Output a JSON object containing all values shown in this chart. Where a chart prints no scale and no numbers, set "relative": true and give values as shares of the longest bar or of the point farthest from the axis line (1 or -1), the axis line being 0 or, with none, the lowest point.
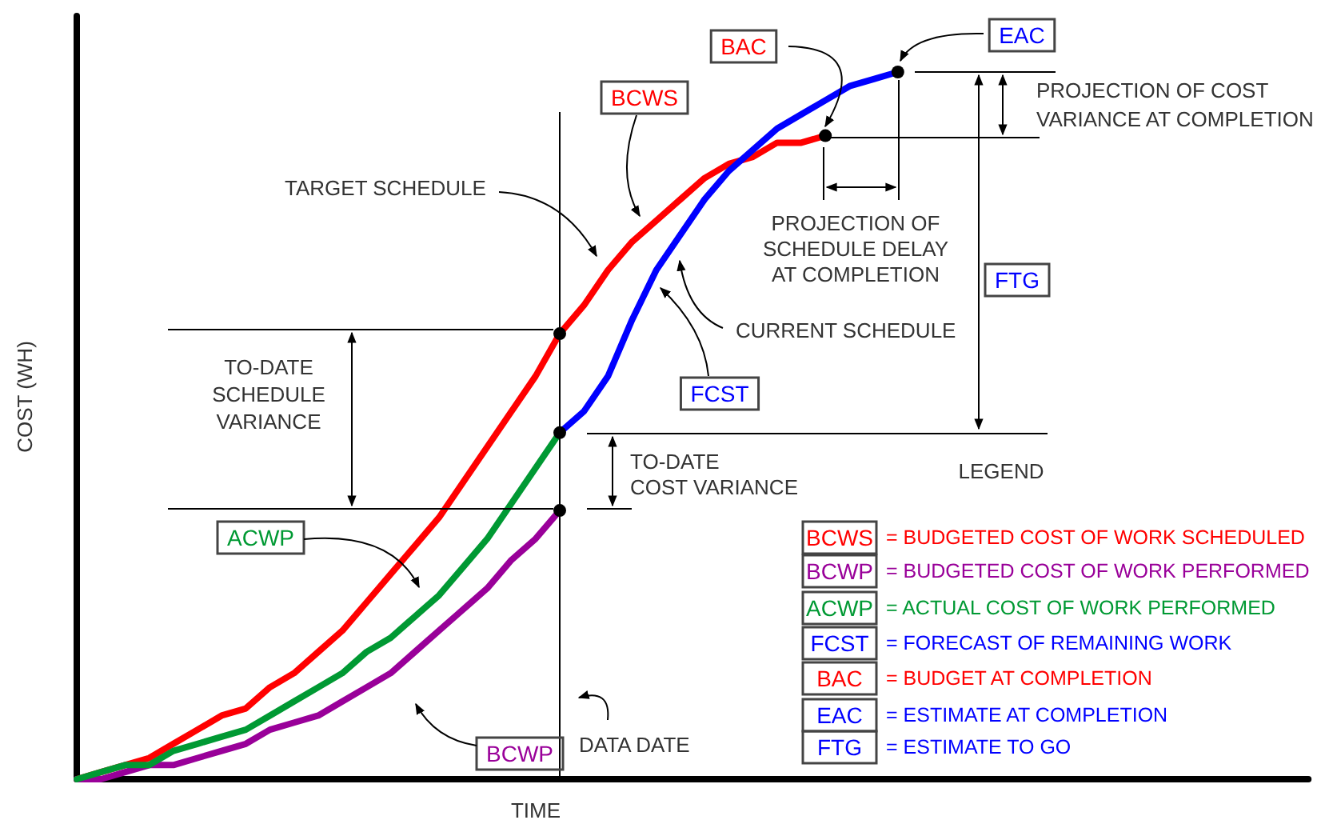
{
  "chart_data": {
    "type": "line",
    "relative": true,
    "xlabel": "TIME",
    "ylabel": "COST (WH)",
    "marker": "none",
    "line_style": "solid",
    "grid": false,
    "legend": false,
    "categories": [
      null,
      null,
      null,
      null,
      null,
      null,
      null,
      null,
      null,
      null,
      null,
      null,
      null,
      null,
      null,
      null,
      null,
      null,
      null,
      null,
      null,
      null,
      null,
      null,
      null,
      null,
      null,
      null,
      null,
      null,
      null,
      null,
      null,
      null,
      null,
      null,
      null,
      null,
      null,
      null,
      null,
      null,
      null,
      null,
      null,
      null,
      null,
      null,
      null,
      null,
      null,
      null
    ],
    "series": [
      {
        "name": "BCWS",
        "color": "#ff0000",
        "values": [
          0,
          0.01,
          0.02,
          0.03,
          0.05,
          0.07,
          0.09,
          0.1,
          0.13,
          0.15,
          0.18,
          0.21,
          0.25,
          0.29,
          0.33,
          0.37,
          0.42,
          0.47,
          0.52,
          0.57,
          0.63,
          0.67,
          0.72,
          0.76,
          0.79,
          0.82,
          0.85,
          0.87,
          0.88,
          0.9,
          0.9,
          0.91,
          null,
          null,
          null,
          null,
          null,
          null,
          null,
          null,
          null,
          null,
          null,
          null,
          null,
          null,
          null,
          null,
          null,
          null,
          null,
          null
        ]
      },
      {
        "name": "BCWP",
        "color": "#990099",
        "values": [
          0,
          0,
          0.01,
          0.02,
          0.02,
          0.03,
          0.04,
          0.05,
          0.07,
          0.08,
          0.09,
          0.11,
          0.13,
          0.15,
          0.18,
          0.21,
          0.24,
          0.27,
          0.31,
          0.34,
          0.38,
          null,
          null,
          null,
          null,
          null,
          null,
          null,
          null,
          null,
          null,
          null,
          null,
          null,
          null,
          null,
          null,
          null,
          null,
          null,
          null,
          null,
          null,
          null,
          null,
          null,
          null,
          null,
          null,
          null,
          null,
          null
        ]
      },
      {
        "name": "ACWP",
        "color": "#009933",
        "values": [
          0,
          0.01,
          0.02,
          0.02,
          0.04,
          0.05,
          0.06,
          0.07,
          0.09,
          0.11,
          0.13,
          0.15,
          0.18,
          0.2,
          0.23,
          0.26,
          0.3,
          0.34,
          0.39,
          0.44,
          0.49,
          null,
          null,
          null,
          null,
          null,
          null,
          null,
          null,
          null,
          null,
          null,
          null,
          null,
          null,
          null,
          null,
          null,
          null,
          null,
          null,
          null,
          null,
          null,
          null,
          null,
          null,
          null,
          null,
          null,
          null,
          null
        ]
      },
      {
        "name": "FCST",
        "color": "#0000ff",
        "values": [
          null,
          null,
          null,
          null,
          null,
          null,
          null,
          null,
          null,
          null,
          null,
          null,
          null,
          null,
          null,
          null,
          null,
          null,
          null,
          null,
          0.49,
          0.52,
          0.57,
          0.65,
          0.72,
          0.77,
          0.82,
          0.86,
          0.89,
          0.92,
          0.94,
          0.96,
          0.98,
          0.99,
          1,
          null,
          null,
          null,
          null,
          null,
          null,
          null,
          null,
          null,
          null,
          null,
          null,
          null,
          null,
          null,
          null,
          null
        ]
      }
    ],
    "ref_lines": [
      {
        "axis": "x",
        "label": "DATA DATE",
        "color": "#000000"
      }
    ],
    "annotations": [
      "TARGET SCHEDULE",
      "CURRENT SCHEDULE",
      "PROJECTION OF COST\nVARIANCE AT COMPLETION",
      "PROJECTION OF\nSCHEDULE DELAY\nAT COMPLETION",
      "TO-DATE\nSCHEDULE\nVARIANCE",
      "TO-DATE\nCOST VARIANCE",
      "LEGEND",
      "BAC",
      "EAC",
      "FTG",
      "BCWS = BUDGETED COST OF WORK SCHEDULED",
      "BCWP = BUDGETED COST OF WORK PERFORMED",
      "ACWP = ACTUAL COST OF WORK PERFORMED",
      "FCST = FORECAST OF REMAINING WORK",
      "BAC = BUDGET AT COMPLETION",
      "EAC = ESTIMATE AT COMPLETION",
      "FTG = ESTIMATE TO GO"
    ]
  }
}
